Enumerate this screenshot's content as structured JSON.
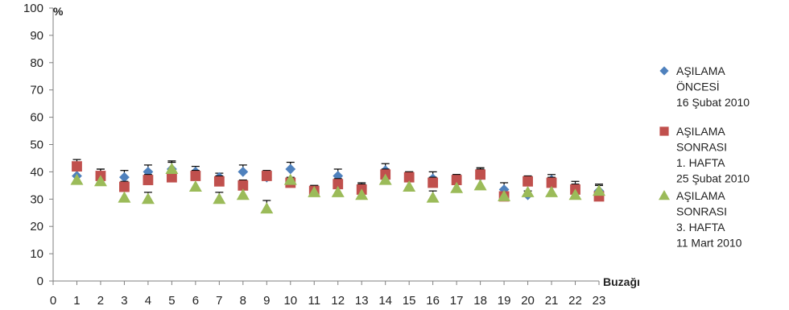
{
  "chart_data": {
    "type": "scatter",
    "title": "",
    "ylabel": "%",
    "xlabel": "Buzağı",
    "ylim": [
      0,
      100
    ],
    "yticks": [
      0,
      10,
      20,
      30,
      40,
      50,
      60,
      70,
      80,
      90,
      100
    ],
    "xlim": [
      0,
      23
    ],
    "xticks": [
      0,
      1,
      2,
      3,
      4,
      5,
      6,
      7,
      8,
      9,
      10,
      11,
      12,
      13,
      14,
      15,
      16,
      17,
      18,
      19,
      20,
      21,
      22,
      23
    ],
    "grid": false,
    "legend_position": "right",
    "error_bars": true,
    "series": [
      {
        "name": [
          "AŞILAMA",
          "ÖNCESİ",
          "16 Şubat 2010"
        ],
        "marker": "diamond",
        "color": "#4f81bd",
        "x": [
          1,
          2,
          3,
          4,
          5,
          6,
          7,
          8,
          9,
          10,
          11,
          12,
          13,
          14,
          15,
          16,
          17,
          18,
          19,
          20,
          21,
          22,
          23
        ],
        "y": [
          38.5,
          38.5,
          38,
          40,
          41,
          40,
          38,
          40,
          38,
          41,
          33,
          38.5,
          34,
          40.5,
          38,
          37.5,
          37,
          38.5,
          33.5,
          31.5,
          37,
          34,
          33
        ],
        "err": [
          2.5,
          2.5,
          2.5,
          2.5,
          2.5,
          2,
          1.5,
          2.5,
          1.5,
          2.5,
          2,
          2.5,
          2,
          2.5,
          2,
          2.5,
          2,
          2.5,
          2.5,
          1.5,
          2,
          2.5,
          2.5
        ]
      },
      {
        "name": [
          "AŞILAMA",
          "SONRASI",
          "1. HAFTA",
          "25 Şubat 2010"
        ],
        "marker": "square",
        "color": "#c0504d",
        "x": [
          1,
          2,
          3,
          4,
          5,
          6,
          7,
          8,
          9,
          10,
          11,
          12,
          13,
          14,
          15,
          16,
          17,
          18,
          19,
          20,
          21,
          22,
          23
        ],
        "y": [
          42,
          38.5,
          34.5,
          37,
          38,
          38.5,
          36.5,
          35,
          38.5,
          36,
          33,
          35.5,
          33.5,
          39,
          38,
          36,
          37,
          39,
          31,
          36.5,
          36,
          33.5,
          31
        ],
        "err": [
          2.5,
          2.5,
          2,
          2,
          2,
          2,
          2,
          2,
          2,
          2,
          2,
          2,
          2,
          2,
          2,
          2,
          2,
          2.5,
          1.5,
          2,
          2,
          2,
          1.5
        ]
      },
      {
        "name": [
          "AŞILAMA",
          "SONRASI",
          "3. HAFTA",
          "11 Mart 2010"
        ],
        "marker": "triangle",
        "color": "#9bbb59",
        "x": [
          1,
          2,
          3,
          4,
          5,
          6,
          7,
          8,
          9,
          10,
          11,
          12,
          13,
          14,
          15,
          16,
          17,
          18,
          19,
          20,
          21,
          22,
          23
        ],
        "y": [
          37,
          36.5,
          30.5,
          30,
          41,
          34.5,
          30,
          31.5,
          26.5,
          37,
          32.5,
          32.5,
          31.5,
          37,
          34.5,
          30.5,
          34,
          35,
          31,
          32.5,
          32.5,
          31.5,
          33
        ],
        "err": [
          0,
          0,
          0,
          2.5,
          3,
          0,
          2.5,
          0,
          3,
          0,
          0,
          0,
          0,
          0,
          0,
          2.5,
          0,
          0,
          0,
          0,
          0,
          0,
          2
        ]
      }
    ]
  }
}
